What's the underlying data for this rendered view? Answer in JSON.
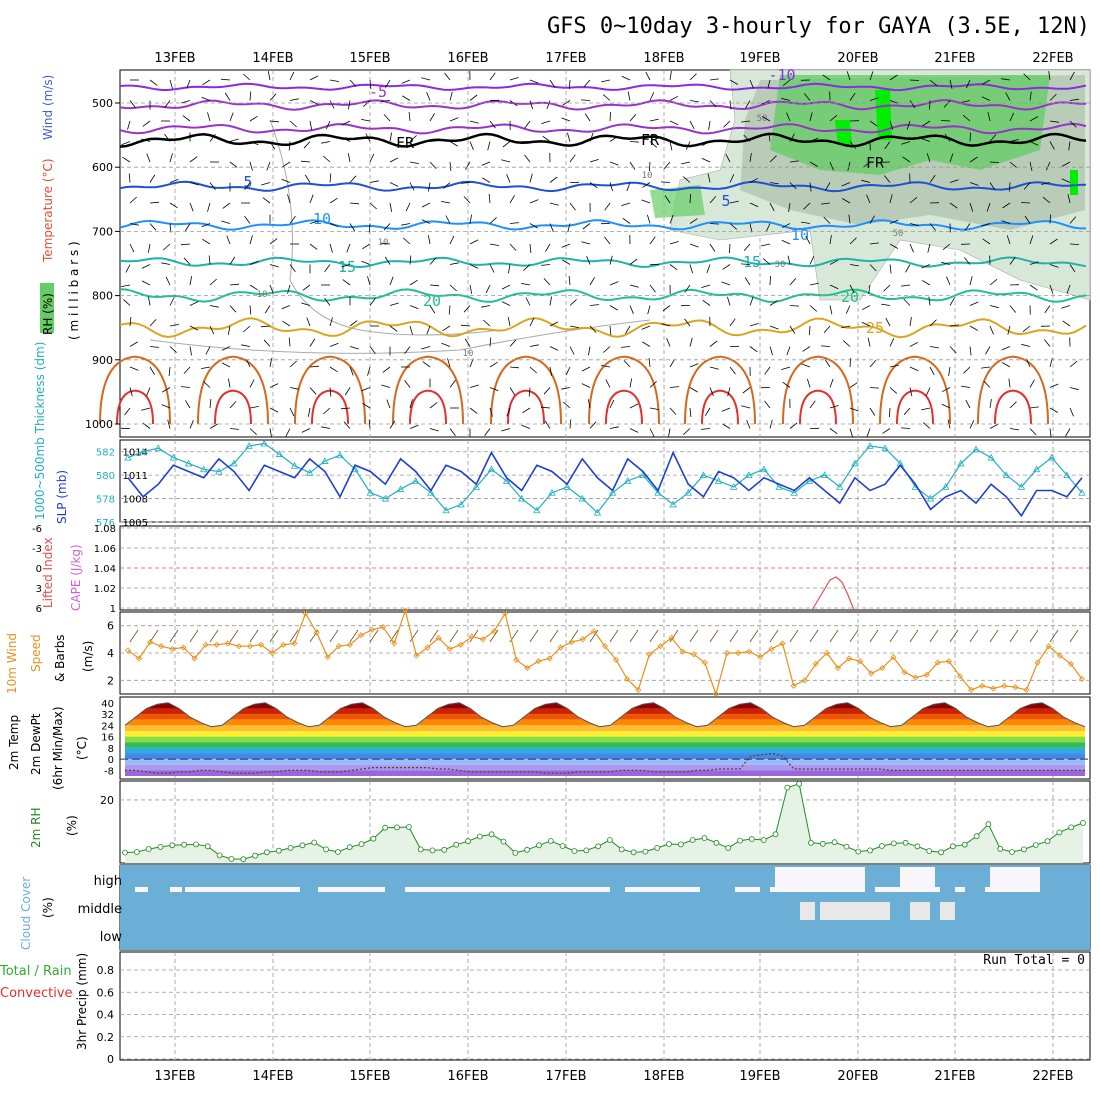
{
  "title": "GFS 0~10day 3-hourly for GAYA (3.5E, 12N)",
  "dates": [
    "13FEB",
    "14FEB",
    "15FEB",
    "16FEB",
    "17FEB",
    "18FEB",
    "19FEB",
    "20FEB",
    "21FEB",
    "22FEB"
  ],
  "run_total": "Run Total = 0",
  "colors": {
    "rh_green": "#66cc66",
    "rh_bright": "#00ee00",
    "rh_grey": "#c8d8c8",
    "temp_neg10": "#8a2be2",
    "temp_neg5": "#9932cc",
    "temp_5": "#1f4fd6",
    "temp_10": "#1e90ff",
    "temp_15": "#20b2aa",
    "temp_20": "#20c090",
    "temp_25": "#daa520",
    "temp_30": "#d2691e",
    "temp_35": "#e03030",
    "slp": "#1f3fcf",
    "thickness": "#20b0c0",
    "wind": "#e8901a",
    "rh2m": "#228b22",
    "cloud": "#6baed6",
    "lifted": "#e05050",
    "cape": "#cc66cc"
  },
  "panels": {
    "upper": {
      "ylabel_rh": "RH (%)",
      "ylabel_temp": "Temperature (°C)",
      "ylabel_wind": "Wind (m/s)",
      "ylabel_unit": "( m i l l i b a r s )",
      "ticks": [
        "500",
        "600",
        "700",
        "800",
        "900",
        "1000"
      ],
      "contour_labels": [
        "-10",
        "-5",
        "FR",
        "FR",
        "FR",
        "5",
        "5",
        "10",
        "10",
        "15",
        "15",
        "20",
        "20",
        "25",
        "10",
        "10",
        "10",
        "50",
        "50",
        "30",
        "10"
      ]
    },
    "slp": {
      "ylabel_thk": "1000~500mb Thickness (dm)",
      "ylabel_slp": "SLP (mb)",
      "ticks_left": [
        "582",
        "580",
        "578",
        "576"
      ],
      "ticks_right": [
        "1014",
        "1011",
        "1008",
        "1005"
      ]
    },
    "cape": {
      "ylabel_li": "Lifted Index",
      "ylabel_cape": "CAPE (J/kg)",
      "ticks_left": [
        "-6",
        "-3",
        "0",
        "3",
        "6"
      ],
      "ticks_right": [
        "1.08",
        "1.06",
        "1.04",
        "1.02",
        "1"
      ]
    },
    "wind10": {
      "ylabel_a": "10m Wind",
      "ylabel_b": "Speed",
      "ylabel_c": "& Barbs",
      "ylabel_unit": "(m/s)",
      "ticks": [
        "6",
        "4",
        "2"
      ]
    },
    "temp2m": {
      "ylabel_a": "2m Temp",
      "ylabel_b": "2m DewPt",
      "ylabel_c": "(6hr Min/Max)",
      "ylabel_unit": "(°C)",
      "ticks": [
        "40",
        "32",
        "24",
        "16",
        "8",
        "0",
        "-8"
      ]
    },
    "rh2m": {
      "ylabel": "2m RH",
      "ylabel_unit": "(%)",
      "ticks": [
        "20"
      ]
    },
    "cloud": {
      "ylabel": "Cloud Cover",
      "ylabel_unit": "(%)",
      "layers": [
        "high",
        "middle",
        "low"
      ]
    },
    "precip": {
      "ylabel_a": "Total / Rain",
      "ylabel_b": "Convective",
      "ylabel_c": "3hr Precip (mm)",
      "ticks": [
        "0.8",
        "0.6",
        "0.4",
        "0.2",
        "0"
      ]
    }
  },
  "chart_data": [
    {
      "type": "line",
      "panel": "SLP / thickness",
      "x_unit": "3-hourly steps from 12FEB 12Z",
      "series": [
        {
          "name": "SLP (mb)",
          "values": [
            1010,
            1007,
            1009,
            1012,
            1011,
            1010,
            1013,
            1011,
            1008,
            1012,
            1011,
            1010,
            1013,
            1011,
            1007,
            1012,
            1011,
            1009,
            1013,
            1011,
            1008,
            1012,
            1011,
            1009,
            1014,
            1010,
            1008,
            1012,
            1011,
            1009,
            1013,
            1010,
            1008,
            1013,
            1011,
            1008,
            1014,
            1009,
            1007,
            1011,
            1010,
            1008,
            1010,
            1009,
            1008,
            1010,
            1008,
            1006,
            1010,
            1008,
            1009,
            1012,
            1009,
            1005,
            1007,
            1008,
            1006,
            1009,
            1007,
            1004,
            1008,
            1008,
            1007,
            1010
          ],
          "ylim": [
            1003,
            1016
          ]
        },
        {
          "name": "Thickness (dm)",
          "values": [
            581.5,
            582.0,
            582.3,
            581.5,
            581.0,
            580.5,
            580.3,
            581.0,
            582.5,
            582.7,
            581.8,
            580.8,
            580.2,
            581.2,
            581.7,
            580.5,
            578.5,
            578.0,
            578.8,
            579.5,
            578.5,
            577.0,
            577.5,
            579.0,
            580.5,
            579.5,
            578.0,
            577.0,
            578.5,
            579.0,
            578.0,
            576.8,
            578.5,
            579.5,
            580.0,
            578.5,
            577.5,
            578.5,
            580.0,
            579.5,
            579.0,
            580.0,
            580.5,
            579.0,
            578.5,
            579.5,
            580.0,
            579.0,
            581.0,
            582.5,
            582.3,
            581.0,
            579.0,
            578.0,
            579.0,
            581.0,
            582.2,
            581.5,
            580.0,
            579.0,
            580.5,
            581.5,
            580.0,
            578.5
          ],
          "ylim": [
            576,
            583
          ]
        }
      ]
    },
    {
      "type": "line",
      "panel": "10m wind speed",
      "y_unit": "m/s",
      "ylim": [
        1,
        7
      ],
      "values": [
        4.2,
        3.6,
        4.8,
        4.5,
        4.3,
        4.4,
        3.6,
        4.6,
        4.6,
        4.7,
        4.5,
        4.5,
        4.6,
        4.0,
        4.6,
        4.7,
        6.9,
        5.5,
        3.7,
        4.5,
        4.6,
        5.3,
        5.7,
        5.9,
        4.7,
        7.1,
        3.8,
        4.4,
        5.1,
        4.3,
        4.6,
        5.2,
        5.0,
        5.6,
        6.9,
        3.5,
        2.9,
        3.4,
        3.6,
        4.4,
        4.8,
        5.0,
        5.6,
        4.5,
        3.5,
        2.1,
        1.3,
        3.9,
        4.5,
        5.1,
        4.1,
        3.9,
        3.3,
        1.0,
        4.0,
        4.0,
        4.1,
        3.7,
        4.3,
        4.7,
        1.6,
        2.0,
        3.2,
        4.0,
        2.9,
        3.6,
        3.4,
        2.5,
        2.9,
        3.7,
        2.6,
        2.2,
        2.4,
        3.3,
        3.4,
        2.3,
        1.3,
        1.6,
        1.4,
        1.6,
        1.5,
        1.3,
        3.3,
        4.5,
        3.8,
        3.2,
        2.1
      ]
    },
    {
      "type": "line",
      "panel": "2m RH",
      "y_unit": "%",
      "ylim": [
        0,
        26
      ],
      "values": [
        3.3,
        3.5,
        4.4,
        5.1,
        5.6,
        5.8,
        5.9,
        5.3,
        2.4,
        1.3,
        1.2,
        2.3,
        3.4,
        3.9,
        4.8,
        5.6,
        6.5,
        4.3,
        3.5,
        5.0,
        6.0,
        7.7,
        11.2,
        11.3,
        11.4,
        4.3,
        4.0,
        4.2,
        5.8,
        6.9,
        8.4,
        9.1,
        6.8,
        3.2,
        4.2,
        5.6,
        7.0,
        5.4,
        3.8,
        4.0,
        5.3,
        7.3,
        4.3,
        3.4,
        3.6,
        4.8,
        6.0,
        5.9,
        7.3,
        7.9,
        6.4,
        4.8,
        7.1,
        7.6,
        7.3,
        9.1,
        23.9,
        25.1,
        6.4,
        6.1,
        6.6,
        5.2,
        3.6,
        4.0,
        5.4,
        6.2,
        6.4,
        5.3,
        3.8,
        3.4,
        5.3,
        5.8,
        8.5,
        12.3,
        4.5,
        3.5,
        4.3,
        5.7,
        6.9,
        9.7,
        11.3,
        12.7
      ]
    },
    {
      "type": "area",
      "panel": "2m temperature / dewpoint",
      "y_unit": "°C",
      "ylim": [
        -12,
        42
      ],
      "series": [
        {
          "name": "2m Temp",
          "values": [
            24,
            30,
            36,
            39,
            40,
            36,
            30,
            26,
            23,
            24,
            30,
            36,
            39,
            40,
            36,
            30,
            26,
            23,
            24,
            30,
            36,
            39,
            40,
            36,
            30,
            26,
            23,
            24,
            30,
            36,
            39,
            40,
            36,
            30,
            26,
            23,
            24,
            30,
            36,
            39,
            40,
            36,
            30,
            26,
            23,
            24,
            30,
            36,
            39,
            40,
            36,
            30,
            26,
            23,
            24,
            30,
            36,
            39,
            40,
            36,
            30,
            26,
            23,
            24,
            30,
            36,
            39,
            40,
            36,
            30,
            26,
            23,
            24,
            30,
            36,
            39,
            40,
            36,
            30,
            26,
            23,
            24,
            30,
            36,
            39,
            40,
            36,
            30,
            26,
            23
          ]
        },
        {
          "name": "2m DewPt",
          "values": [
            -8,
            -8,
            -9,
            -10,
            -10,
            -9,
            -9,
            -8,
            -8,
            -9,
            -10,
            -10,
            -10,
            -9,
            -9,
            -8,
            -8,
            -8,
            -9,
            -9,
            -9,
            -8,
            -7,
            -6,
            -6,
            -6,
            -6,
            -6,
            -6,
            -7,
            -7,
            -8,
            -9,
            -9,
            -9,
            -9,
            -9,
            -9,
            -9,
            -10,
            -10,
            -10,
            -9,
            -9,
            -9,
            -9,
            -8,
            -8,
            -8,
            -9,
            -9,
            -9,
            -9,
            -8,
            -8,
            -7,
            -7,
            -7,
            2,
            3,
            4,
            2,
            -7,
            -7,
            -7,
            -7,
            -7,
            -7,
            -7,
            -7,
            -7,
            -8,
            -8,
            -8,
            -8,
            -8,
            -8,
            -8,
            -8,
            -8,
            -8,
            -8,
            -8,
            -8,
            -8,
            -8,
            -8,
            -8,
            -8,
            -8
          ]
        }
      ]
    },
    {
      "type": "line",
      "panel": "CAPE",
      "y_unit": "J/kg",
      "ylim": [
        1,
        1.08
      ],
      "values": [
        1.0,
        1.01,
        1.02,
        1.03,
        1.033,
        1.028,
        1.015,
        1.0
      ]
    },
    {
      "type": "bar",
      "panel": "3hr precip",
      "run_total": 0,
      "values": [
        0
      ]
    }
  ]
}
